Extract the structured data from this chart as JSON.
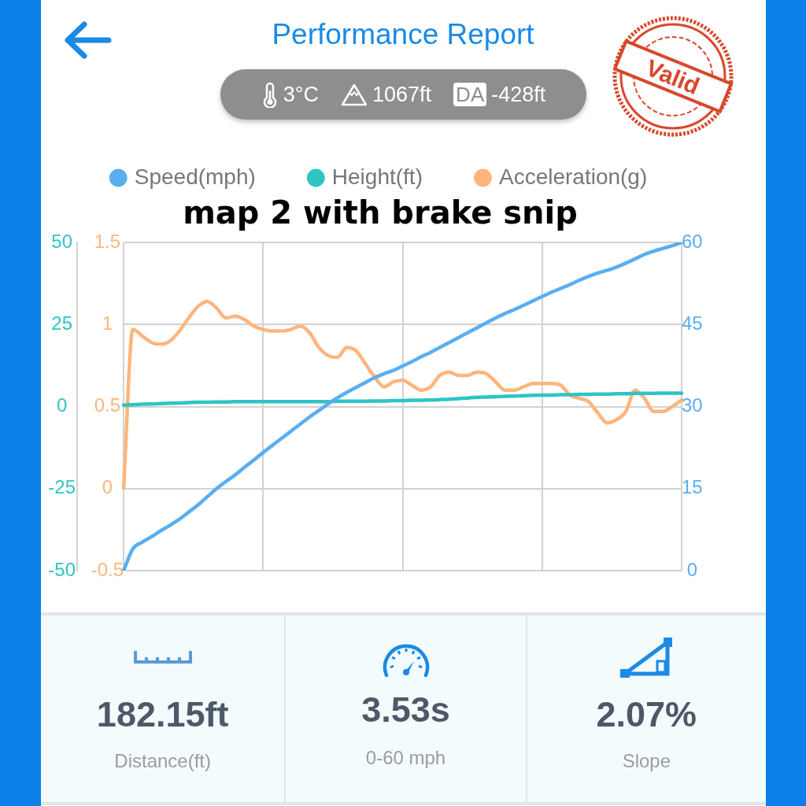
{
  "chart_data": {
    "type": "line",
    "title": "Performance Report",
    "subtitle": "map 2 with brake snip",
    "categories": [
      null,
      null,
      null,
      null,
      null,
      null,
      null,
      null,
      null,
      null,
      null,
      null,
      null,
      null,
      null,
      null,
      null,
      null,
      null,
      null,
      null,
      null,
      null,
      null,
      null,
      null,
      null,
      null,
      null,
      null,
      null,
      null,
      null,
      null,
      null,
      null,
      null,
      null,
      null,
      null,
      null,
      null,
      null,
      null,
      null,
      null,
      null,
      null,
      null,
      null,
      null,
      null,
      null,
      null,
      null,
      null,
      null,
      null,
      null,
      null,
      null
    ],
    "series": [
      {
        "name": "Speed(mph)",
        "color": "#5aaef0",
        "axis": "y2",
        "values": [
          0,
          4.0,
          5.2,
          6.2,
          7.3,
          8.3,
          9.4,
          10.7,
          12.0,
          13.5,
          15.0,
          16.3,
          17.5,
          18.9,
          20.2,
          21.6,
          22.9,
          24.2,
          25.5,
          26.8,
          28.1,
          29.3,
          30.5,
          31.6,
          32.6,
          33.5,
          34.4,
          35.3,
          36.0,
          36.6,
          37.4,
          38.2,
          39.1,
          39.9,
          40.8,
          41.7,
          42.6,
          43.5,
          44.4,
          45.3,
          46.2,
          47.0,
          47.7,
          48.5,
          49.3,
          50.1,
          50.9,
          51.6,
          52.3,
          53.1,
          53.8,
          54.4,
          54.9,
          55.5,
          56.2,
          57.0,
          57.8,
          58.4,
          58.9,
          59.4,
          60
        ]
      },
      {
        "name": "Height(ft)",
        "color": "#2ec4c4",
        "axis": "y",
        "values": [
          0.4,
          0.6,
          0.7,
          0.8,
          0.9,
          1.0,
          1.1,
          1.2,
          1.3,
          1.3,
          1.4,
          1.4,
          1.5,
          1.5,
          1.5,
          1.5,
          1.5,
          1.5,
          1.5,
          1.5,
          1.5,
          1.5,
          1.5,
          1.6,
          1.6,
          1.6,
          1.6,
          1.7,
          1.7,
          1.8,
          1.8,
          1.9,
          1.9,
          2.0,
          2.1,
          2.2,
          2.4,
          2.6,
          2.8,
          2.9,
          3.0,
          3.1,
          3.2,
          3.3,
          3.4,
          3.5,
          3.5,
          3.6,
          3.6,
          3.7,
          3.7,
          3.8,
          3.8,
          3.9,
          3.9,
          4.0,
          4.0,
          4.0,
          4.1,
          4.1,
          4.1
        ]
      },
      {
        "name": "Acceleration(g)",
        "color": "#ffb57d",
        "axis": "y3",
        "values": [
          0.0,
          0.97,
          0.93,
          0.89,
          0.88,
          0.9,
          0.96,
          1.04,
          1.11,
          1.14,
          1.1,
          1.04,
          1.05,
          1.03,
          0.99,
          0.97,
          0.96,
          0.96,
          0.97,
          0.99,
          0.95,
          0.86,
          0.81,
          0.8,
          0.86,
          0.84,
          0.76,
          0.68,
          0.62,
          0.65,
          0.66,
          0.63,
          0.6,
          0.62,
          0.69,
          0.71,
          0.69,
          0.69,
          0.71,
          0.7,
          0.65,
          0.6,
          0.6,
          0.62,
          0.64,
          0.64,
          0.64,
          0.63,
          0.57,
          0.55,
          0.53,
          0.46,
          0.4,
          0.42,
          0.47,
          0.6,
          0.55,
          0.47,
          0.47,
          0.5,
          0.54
        ]
      }
    ],
    "ylim": [
      -50,
      50
    ],
    "yticks": [
      -50,
      -25,
      0,
      25,
      50
    ],
    "y2lim": [
      0,
      60
    ],
    "y2ticks": [
      0,
      15,
      30,
      45,
      60
    ],
    "y3lim": [
      -0.5,
      1.5
    ],
    "y3ticks": [
      -0.5,
      0,
      0.5,
      1,
      1.5
    ],
    "grid": true,
    "legend": "top",
    "annotations": [
      "3°C",
      "1067ft",
      "DA",
      "-428ft",
      "Valid",
      "182.15ft",
      "Distance(ft)",
      "3.53s",
      "0-60 mph",
      "2.07%",
      "Slope"
    ]
  }
}
